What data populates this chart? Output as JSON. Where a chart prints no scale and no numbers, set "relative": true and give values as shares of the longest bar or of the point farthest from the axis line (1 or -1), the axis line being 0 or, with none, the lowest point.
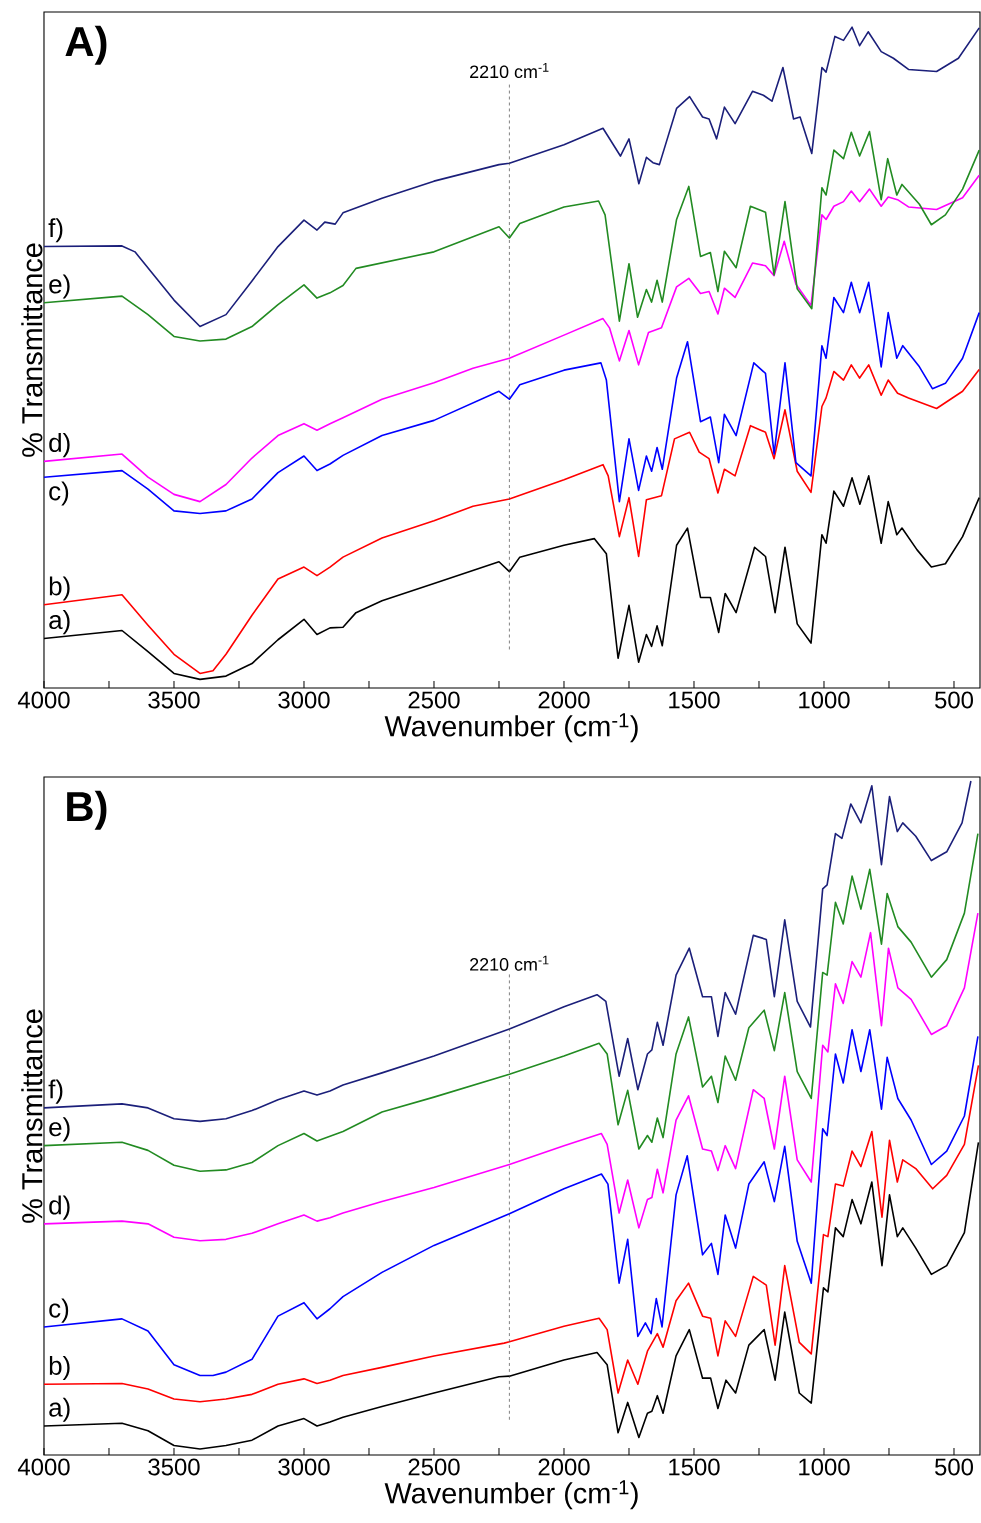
{
  "chart_data": [
    {
      "type": "line",
      "title": "A)",
      "xlabel": "Wavenumber (cm$^{-1}$)",
      "ylabel": "% Transmittance",
      "relative": true,
      "xlim": [
        4000,
        400
      ],
      "xticks": [
        4000,
        {
          "value": 3750,
          "label": null
        },
        3500,
        {
          "value": 3250,
          "label": null
        },
        3000,
        {
          "value": 2750,
          "label": null
        },
        2500,
        {
          "value": 2250,
          "label": null
        },
        2000,
        {
          "value": 1750,
          "label": null
        },
        1500,
        {
          "value": 1250,
          "label": null
        },
        1000,
        {
          "value": 750,
          "label": null
        },
        500
      ],
      "ref_lines": [
        {
          "axis": "x",
          "value": 2210,
          "label": "2210 cm$^{-1}$",
          "line_style": "dashed"
        }
      ],
      "series": [
        {
          "name": "a)",
          "color": "#000000",
          "x": [
            4000,
            3700,
            3600,
            3500,
            3400,
            3300,
            3200,
            3100,
            3000,
            2950,
            2900,
            2850,
            2800,
            2700,
            2500,
            2250,
            2210,
            2170,
            2000,
            1883,
            1837,
            1792,
            1750,
            1713,
            1683,
            1663,
            1642,
            1622,
            1567,
            1525,
            1475,
            1437,
            1405,
            1380,
            1338,
            1267,
            1225,
            1188,
            1150,
            1103,
            1050,
            1008,
            992,
            962,
            925,
            892,
            862,
            828,
            780,
            753,
            720,
            700,
            642,
            587,
            533,
            467,
            403
          ],
          "values": [
            0.075,
            0.087,
            0.055,
            0.022,
            0.013,
            0.018,
            0.037,
            0.073,
            0.104,
            0.081,
            0.091,
            0.092,
            0.114,
            0.132,
            0.158,
            0.191,
            0.176,
            0.198,
            0.216,
            0.226,
            0.203,
            0.045,
            0.125,
            0.039,
            0.081,
            0.063,
            0.094,
            0.064,
            0.216,
            0.242,
            0.137,
            0.137,
            0.084,
            0.143,
            0.114,
            0.213,
            0.199,
            0.114,
            0.213,
            0.097,
            0.068,
            0.232,
            0.219,
            0.298,
            0.275,
            0.318,
            0.278,
            0.321,
            0.219,
            0.282,
            0.232,
            0.242,
            0.209,
            0.183,
            0.188,
            0.229,
            0.288
          ]
        },
        {
          "name": "b)",
          "color": "#ff0000",
          "x": [
            4000,
            3700,
            3600,
            3500,
            3400,
            3350,
            3300,
            3200,
            3100,
            3000,
            2950,
            2900,
            2850,
            2700,
            2500,
            2350,
            2210,
            2000,
            1850,
            1830,
            1787,
            1750,
            1713,
            1683,
            1625,
            1575,
            1517,
            1480,
            1442,
            1408,
            1383,
            1342,
            1283,
            1225,
            1192,
            1150,
            1103,
            1050,
            1008,
            992,
            962,
            925,
            895,
            863,
            828,
            780,
            753,
            717,
            675,
            567,
            467,
            403
          ],
          "values": [
            0.126,
            0.141,
            0.095,
            0.051,
            0.022,
            0.026,
            0.051,
            0.11,
            0.165,
            0.183,
            0.17,
            0.183,
            0.198,
            0.227,
            0.253,
            0.275,
            0.286,
            0.315,
            0.338,
            0.321,
            0.229,
            0.288,
            0.199,
            0.285,
            0.291,
            0.377,
            0.387,
            0.357,
            0.347,
            0.295,
            0.331,
            0.321,
            0.397,
            0.387,
            0.347,
            0.421,
            0.328,
            0.296,
            0.426,
            0.439,
            0.479,
            0.466,
            0.489,
            0.469,
            0.489,
            0.443,
            0.466,
            0.446,
            0.439,
            0.423,
            0.449,
            0.482
          ]
        },
        {
          "name": "c)",
          "color": "#0000ff",
          "x": [
            4000,
            3700,
            3600,
            3500,
            3400,
            3300,
            3200,
            3100,
            3000,
            2950,
            2900,
            2850,
            2700,
            2500,
            2250,
            2210,
            2170,
            2000,
            1858,
            1837,
            1787,
            1750,
            1713,
            1683,
            1663,
            1642,
            1622,
            1567,
            1525,
            1475,
            1437,
            1405,
            1383,
            1338,
            1270,
            1225,
            1192,
            1150,
            1108,
            1050,
            1008,
            992,
            962,
            925,
            895,
            863,
            828,
            780,
            753,
            720,
            697,
            633,
            583,
            533,
            467,
            403
          ],
          "values": [
            0.319,
            0.329,
            0.301,
            0.268,
            0.264,
            0.268,
            0.286,
            0.326,
            0.351,
            0.329,
            0.339,
            0.352,
            0.382,
            0.405,
            0.449,
            0.437,
            0.459,
            0.481,
            0.492,
            0.466,
            0.282,
            0.377,
            0.299,
            0.351,
            0.328,
            0.364,
            0.331,
            0.469,
            0.524,
            0.403,
            0.41,
            0.341,
            0.414,
            0.382,
            0.492,
            0.476,
            0.354,
            0.492,
            0.341,
            0.321,
            0.518,
            0.499,
            0.591,
            0.568,
            0.614,
            0.568,
            0.614,
            0.486,
            0.568,
            0.499,
            0.518,
            0.486,
            0.453,
            0.461,
            0.499,
            0.568
          ]
        },
        {
          "name": "d)",
          "color": "#ff00ff",
          "x": [
            4000,
            3700,
            3600,
            3500,
            3400,
            3300,
            3200,
            3100,
            3000,
            2950,
            2900,
            2850,
            2700,
            2500,
            2350,
            2210,
            2000,
            1850,
            1825,
            1787,
            1750,
            1713,
            1675,
            1625,
            1567,
            1520,
            1475,
            1442,
            1408,
            1383,
            1342,
            1275,
            1225,
            1192,
            1153,
            1108,
            1050,
            1008,
            992,
            962,
            925,
            895,
            863,
            825,
            780,
            753,
            717,
            675,
            567,
            467,
            403
          ],
          "values": [
            0.343,
            0.354,
            0.319,
            0.293,
            0.282,
            0.308,
            0.348,
            0.382,
            0.4,
            0.39,
            0.4,
            0.409,
            0.437,
            0.462,
            0.484,
            0.499,
            0.534,
            0.559,
            0.545,
            0.495,
            0.541,
            0.489,
            0.538,
            0.545,
            0.607,
            0.62,
            0.597,
            0.6,
            0.566,
            0.605,
            0.591,
            0.643,
            0.639,
            0.624,
            0.676,
            0.611,
            0.579,
            0.716,
            0.709,
            0.729,
            0.736,
            0.752,
            0.736,
            0.755,
            0.729,
            0.743,
            0.739,
            0.728,
            0.724,
            0.742,
            0.776
          ]
        },
        {
          "name": "e)",
          "color": "#228b22",
          "x": [
            4000,
            3700,
            3600,
            3500,
            3400,
            3300,
            3200,
            3100,
            3000,
            2950,
            2900,
            2850,
            2800,
            2500,
            2250,
            2210,
            2170,
            2000,
            1867,
            1842,
            1787,
            1750,
            1717,
            1683,
            1663,
            1642,
            1622,
            1567,
            1520,
            1475,
            1437,
            1408,
            1383,
            1338,
            1283,
            1225,
            1192,
            1150,
            1103,
            1047,
            1008,
            992,
            962,
            925,
            895,
            863,
            825,
            780,
            755,
            720,
            700,
            633,
            587,
            533,
            467,
            403
          ],
          "values": [
            0.583,
            0.593,
            0.565,
            0.532,
            0.525,
            0.528,
            0.547,
            0.58,
            0.61,
            0.59,
            0.598,
            0.609,
            0.635,
            0.66,
            0.698,
            0.681,
            0.703,
            0.728,
            0.737,
            0.716,
            0.555,
            0.642,
            0.561,
            0.603,
            0.584,
            0.617,
            0.584,
            0.709,
            0.759,
            0.653,
            0.659,
            0.6,
            0.661,
            0.636,
            0.729,
            0.72,
            0.625,
            0.736,
            0.604,
            0.574,
            0.757,
            0.746,
            0.814,
            0.801,
            0.841,
            0.805,
            0.842,
            0.739,
            0.801,
            0.746,
            0.762,
            0.732,
            0.701,
            0.716,
            0.755,
            0.814
          ]
        },
        {
          "name": "f)",
          "color": "#1b1f7a",
          "x": [
            4000,
            3700,
            3650,
            3500,
            3400,
            3300,
            3200,
            3100,
            3000,
            2950,
            2920,
            2880,
            2850,
            2700,
            2500,
            2250,
            2210,
            2000,
            1850,
            1783,
            1750,
            1712,
            1683,
            1658,
            1633,
            1567,
            1517,
            1467,
            1442,
            1413,
            1383,
            1342,
            1275,
            1233,
            1200,
            1158,
            1117,
            1092,
            1047,
            1008,
            992,
            958,
            925,
            892,
            863,
            830,
            780,
            733,
            675,
            567,
            483,
            403
          ],
          "values": [
            0.668,
            0.669,
            0.66,
            0.587,
            0.547,
            0.565,
            0.616,
            0.668,
            0.708,
            0.693,
            0.705,
            0.702,
            0.719,
            0.741,
            0.767,
            0.792,
            0.794,
            0.822,
            0.847,
            0.805,
            0.831,
            0.763,
            0.803,
            0.795,
            0.792,
            0.877,
            0.895,
            0.864,
            0.861,
            0.831,
            0.879,
            0.854,
            0.903,
            0.897,
            0.888,
            0.939,
            0.861,
            0.864,
            0.809,
            0.939,
            0.932,
            0.986,
            0.98,
            1.0,
            0.972,
            0.993,
            0.963,
            0.953,
            0.936,
            0.933,
            0.953,
            0.999
          ]
        }
      ]
    },
    {
      "type": "line",
      "title": "B)",
      "xlabel": "Wavenumber (cm$^{-1}$)",
      "ylabel": "% Transmittance",
      "relative": true,
      "xlim": [
        4000,
        400
      ],
      "xticks": [
        4000,
        {
          "value": 3750,
          "label": null
        },
        3500,
        {
          "value": 3250,
          "label": null
        },
        3000,
        {
          "value": 2750,
          "label": null
        },
        2500,
        {
          "value": 2250,
          "label": null
        },
        2000,
        {
          "value": 1750,
          "label": null
        },
        1500,
        {
          "value": 1250,
          "label": null
        },
        1000,
        {
          "value": 750,
          "label": null
        },
        500
      ],
      "ref_lines": [
        {
          "axis": "x",
          "value": 2210,
          "label": "2210 cm$^{-1}$",
          "line_style": "dashed"
        }
      ],
      "series": [
        {
          "name": "a)",
          "color": "#000000",
          "x": [
            4000,
            3700,
            3600,
            3500,
            3400,
            3300,
            3200,
            3100,
            3000,
            2950,
            2900,
            2850,
            2700,
            2500,
            2250,
            2210,
            2000,
            1873,
            1834,
            1792,
            1755,
            1712,
            1679,
            1662,
            1641,
            1619,
            1569,
            1518,
            1467,
            1436,
            1408,
            1377,
            1340,
            1289,
            1230,
            1188,
            1151,
            1095,
            1049,
            1002,
            985,
            956,
            926,
            892,
            858,
            816,
            777,
            748,
            718,
            697,
            647,
            587,
            528,
            460,
            406
          ],
          "values": [
            0.043,
            0.047,
            0.036,
            0.014,
            0.009,
            0.014,
            0.022,
            0.043,
            0.054,
            0.043,
            0.049,
            0.056,
            0.072,
            0.092,
            0.116,
            0.117,
            0.141,
            0.152,
            0.134,
            0.033,
            0.078,
            0.026,
            0.062,
            0.065,
            0.088,
            0.062,
            0.147,
            0.186,
            0.114,
            0.114,
            0.069,
            0.111,
            0.092,
            0.163,
            0.186,
            0.111,
            0.212,
            0.092,
            0.077,
            0.248,
            0.242,
            0.337,
            0.324,
            0.379,
            0.343,
            0.405,
            0.281,
            0.386,
            0.324,
            0.337,
            0.307,
            0.268,
            0.281,
            0.33,
            0.464
          ]
        },
        {
          "name": "b)",
          "color": "#ff0000",
          "x": [
            4000,
            3700,
            3600,
            3500,
            3400,
            3300,
            3200,
            3100,
            3000,
            2950,
            2900,
            2850,
            2700,
            2500,
            2230,
            2210,
            2000,
            1865,
            1834,
            1792,
            1755,
            1716,
            1679,
            1641,
            1619,
            1569,
            1521,
            1467,
            1436,
            1408,
            1380,
            1340,
            1272,
            1222,
            1188,
            1151,
            1095,
            1049,
            1002,
            985,
            956,
            926,
            892,
            858,
            816,
            777,
            748,
            718,
            697,
            647,
            582,
            528,
            460,
            406
          ],
          "values": [
            0.105,
            0.106,
            0.098,
            0.083,
            0.079,
            0.083,
            0.09,
            0.105,
            0.113,
            0.106,
            0.111,
            0.118,
            0.13,
            0.147,
            0.166,
            0.168,
            0.191,
            0.203,
            0.186,
            0.092,
            0.141,
            0.105,
            0.154,
            0.18,
            0.16,
            0.229,
            0.255,
            0.206,
            0.203,
            0.147,
            0.199,
            0.176,
            0.265,
            0.252,
            0.163,
            0.281,
            0.167,
            0.15,
            0.327,
            0.324,
            0.402,
            0.399,
            0.451,
            0.428,
            0.48,
            0.353,
            0.467,
            0.405,
            0.438,
            0.425,
            0.395,
            0.415,
            0.461,
            0.578
          ]
        },
        {
          "name": "c)",
          "color": "#0000ff",
          "x": [
            4000,
            3700,
            3600,
            3500,
            3400,
            3350,
            3300,
            3200,
            3100,
            3000,
            2950,
            2900,
            2850,
            2700,
            2500,
            2210,
            2000,
            1856,
            1831,
            1788,
            1755,
            1716,
            1687,
            1665,
            1645,
            1623,
            1569,
            1526,
            1467,
            1433,
            1408,
            1380,
            1340,
            1289,
            1230,
            1191,
            1151,
            1103,
            1049,
            1005,
            988,
            956,
            926,
            892,
            858,
            824,
            779,
            757,
            716,
            665,
            587,
            528,
            460,
            408
          ],
          "values": [
            0.19,
            0.202,
            0.184,
            0.134,
            0.118,
            0.118,
            0.123,
            0.142,
            0.206,
            0.226,
            0.202,
            0.217,
            0.235,
            0.271,
            0.311,
            0.358,
            0.395,
            0.417,
            0.402,
            0.255,
            0.32,
            0.176,
            0.196,
            0.18,
            0.232,
            0.19,
            0.386,
            0.444,
            0.297,
            0.314,
            0.268,
            0.356,
            0.307,
            0.402,
            0.435,
            0.376,
            0.458,
            0.317,
            0.255,
            0.484,
            0.474,
            0.595,
            0.552,
            0.631,
            0.569,
            0.631,
            0.513,
            0.59,
            0.529,
            0.497,
            0.431,
            0.451,
            0.503,
            0.621
          ]
        },
        {
          "name": "d)",
          "color": "#ff00ff",
          "x": [
            4000,
            3700,
            3600,
            3500,
            3400,
            3300,
            3200,
            3100,
            3000,
            2950,
            2900,
            2850,
            2700,
            2500,
            2210,
            2000,
            1856,
            1834,
            1788,
            1755,
            1712,
            1679,
            1662,
            1641,
            1619,
            1569,
            1521,
            1467,
            1433,
            1408,
            1380,
            1340,
            1272,
            1230,
            1191,
            1151,
            1103,
            1049,
            1005,
            985,
            956,
            926,
            892,
            858,
            821,
            779,
            752,
            716,
            665,
            587,
            528,
            460,
            408
          ],
          "values": [
            0.343,
            0.347,
            0.343,
            0.323,
            0.318,
            0.32,
            0.329,
            0.343,
            0.356,
            0.347,
            0.352,
            0.359,
            0.376,
            0.397,
            0.431,
            0.459,
            0.477,
            0.461,
            0.359,
            0.408,
            0.337,
            0.379,
            0.382,
            0.424,
            0.389,
            0.497,
            0.533,
            0.454,
            0.451,
            0.422,
            0.459,
            0.425,
            0.542,
            0.529,
            0.454,
            0.562,
            0.438,
            0.405,
            0.608,
            0.598,
            0.699,
            0.67,
            0.732,
            0.709,
            0.775,
            0.637,
            0.752,
            0.693,
            0.676,
            0.624,
            0.637,
            0.693,
            0.804
          ]
        },
        {
          "name": "e)",
          "color": "#228b22",
          "x": [
            4000,
            3700,
            3600,
            3500,
            3400,
            3300,
            3200,
            3100,
            3000,
            2950,
            2900,
            2850,
            2700,
            2500,
            2210,
            2000,
            1865,
            1834,
            1792,
            1755,
            1712,
            1679,
            1662,
            1641,
            1619,
            1569,
            1521,
            1467,
            1433,
            1408,
            1380,
            1340,
            1289,
            1230,
            1191,
            1151,
            1103,
            1049,
            1005,
            988,
            956,
            926,
            892,
            858,
            824,
            779,
            757,
            716,
            665,
            587,
            528,
            460,
            408
          ],
          "values": [
            0.459,
            0.464,
            0.452,
            0.43,
            0.421,
            0.423,
            0.434,
            0.459,
            0.477,
            0.466,
            0.473,
            0.48,
            0.509,
            0.531,
            0.565,
            0.592,
            0.611,
            0.595,
            0.49,
            0.541,
            0.454,
            0.474,
            0.464,
            0.5,
            0.471,
            0.595,
            0.65,
            0.546,
            0.562,
            0.523,
            0.592,
            0.556,
            0.634,
            0.66,
            0.6,
            0.686,
            0.569,
            0.529,
            0.716,
            0.712,
            0.82,
            0.788,
            0.859,
            0.81,
            0.869,
            0.758,
            0.833,
            0.784,
            0.761,
            0.709,
            0.735,
            0.804,
            0.922
          ]
        },
        {
          "name": "f)",
          "color": "#1b1f7a",
          "x": [
            4000,
            3700,
            3600,
            3500,
            3400,
            3300,
            3200,
            3100,
            3000,
            2950,
            2900,
            2850,
            2700,
            2500,
            2210,
            2000,
            1873,
            1839,
            1788,
            1755,
            1716,
            1679,
            1662,
            1641,
            1619,
            1569,
            1518,
            1467,
            1433,
            1408,
            1380,
            1340,
            1272,
            1222,
            1191,
            1151,
            1103,
            1052,
            1005,
            988,
            956,
            931,
            897,
            858,
            816,
            779,
            748,
            718,
            697,
            647,
            587,
            528,
            469,
            435
          ],
          "values": [
            0.515,
            0.521,
            0.515,
            0.499,
            0.495,
            0.499,
            0.511,
            0.527,
            0.54,
            0.534,
            0.54,
            0.549,
            0.567,
            0.592,
            0.632,
            0.665,
            0.683,
            0.673,
            0.562,
            0.618,
            0.542,
            0.595,
            0.601,
            0.642,
            0.608,
            0.712,
            0.752,
            0.68,
            0.68,
            0.621,
            0.686,
            0.654,
            0.771,
            0.765,
            0.68,
            0.794,
            0.673,
            0.635,
            0.84,
            0.846,
            0.922,
            0.915,
            0.966,
            0.938,
            0.993,
            0.876,
            0.977,
            0.925,
            0.938,
            0.918,
            0.882,
            0.895,
            0.938,
            1.0
          ]
        }
      ]
    }
  ]
}
